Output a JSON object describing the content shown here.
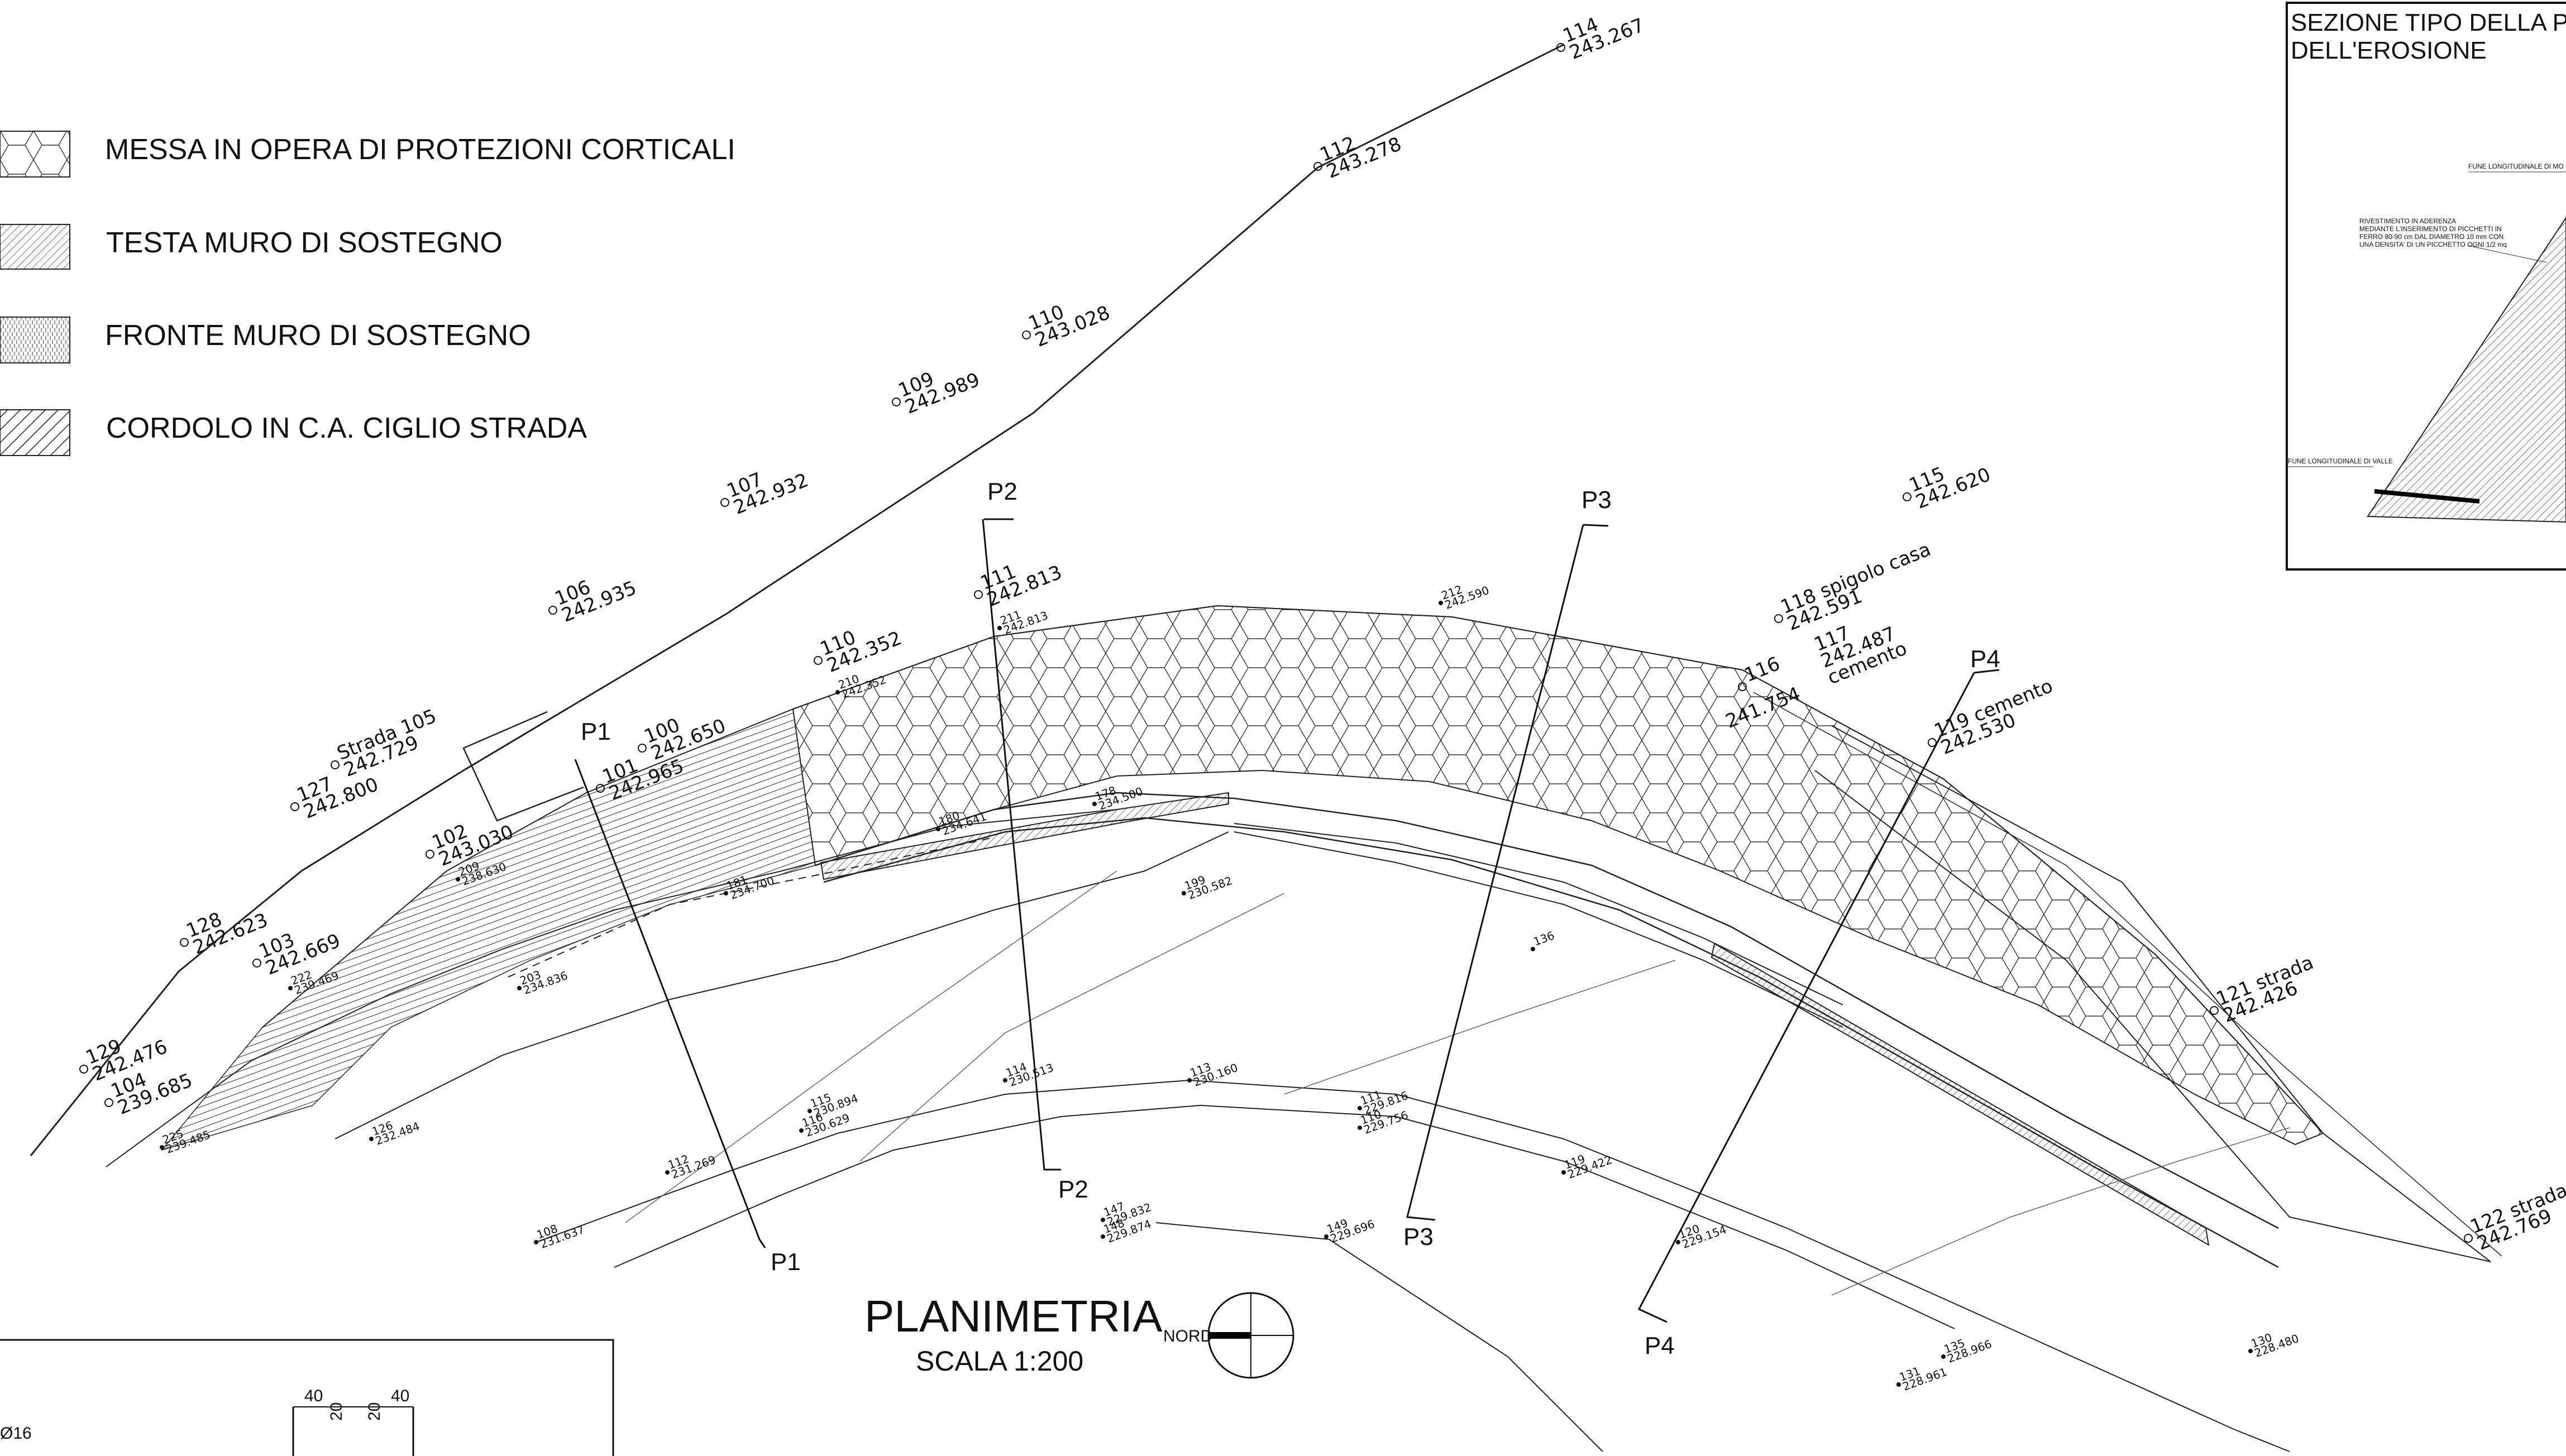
{
  "legend": {
    "items": [
      {
        "label": "MESSA IN OPERA DI PROTEZIONI CORTICALI",
        "pattern": "hex"
      },
      {
        "label": "TESTA MURO DI SOSTEGNO",
        "pattern": "hatch"
      },
      {
        "label": "FRONTE MURO DI SOSTEGNO",
        "pattern": "vlines"
      },
      {
        "label": "CORDOLO IN C.A. CIGLIO STRADA",
        "pattern": "thick-hatch"
      }
    ]
  },
  "detail": {
    "title_line1": "SEZIONE TIPO DELLA PA",
    "title_line2": "DELL'EROSIONE",
    "note_top": "FUNE LONGITUDINALE DI MO",
    "note_mid_1": "RIVESTIMENTO IN ADERENZA",
    "note_mid_2": "MEDIANTE L'INSERIMENTO DI PICCHETTI IN",
    "note_mid_3": "FERRO 80-90 cm DAL DIAMETRO 10 mm CON",
    "note_mid_4": "UNA DENSITA' DI UN PICCHETTO OGNI 1/2 mq",
    "note_bottom": "FUNE LONGITUDINALE DI VALLE"
  },
  "plan": {
    "title": "PLANIMETRIA",
    "scale": "SCALA 1:200",
    "north": "NORD"
  },
  "sections": {
    "p1": "P1",
    "p2": "P2",
    "p3": "P3",
    "p4": "P4"
  },
  "points": {
    "p114": {
      "id": "114",
      "elev": "243.267"
    },
    "p112": {
      "id": "112",
      "elev": "243.278"
    },
    "p110": {
      "id": "110",
      "elev": "243.028"
    },
    "p109": {
      "id": "109",
      "elev": "242.989"
    },
    "p107": {
      "id": "107",
      "elev": "242.932"
    },
    "p106": {
      "id": "106",
      "elev": "242.935"
    },
    "p105": {
      "id": "Strada 105",
      "elev": "242.729"
    },
    "p127": {
      "id": "127",
      "elev": "242.800"
    },
    "p128": {
      "id": "128",
      "elev": "242.623"
    },
    "p129": {
      "id": "129",
      "elev": "242.476"
    },
    "p104": {
      "id": "104",
      "elev": "239.685"
    },
    "p103": {
      "id": "103",
      "elev": "242.669"
    },
    "p102": {
      "id": "102",
      "elev": "243.030"
    },
    "p100": {
      "id": "100",
      "elev": "242.650"
    },
    "p101": {
      "id": "101",
      "elev": "242.965"
    },
    "p110b": {
      "id": "110",
      "elev": "242.352"
    },
    "p111": {
      "id": "111",
      "elev": "242.813"
    },
    "p115": {
      "id": "115",
      "elev": "242.620"
    },
    "p118": {
      "id": "118 spigolo casa",
      "elev": "242.591"
    },
    "p117": {
      "id": "117",
      "elev": "242.487"
    },
    "p117note": "cemento",
    "p116": {
      "id": "116",
      "elev": "241.754"
    },
    "p119": {
      "id": "119 cemento",
      "elev": "242.530"
    },
    "p121": {
      "id": "121 strada",
      "elev": "242.426"
    },
    "p122": {
      "id": "122 strada",
      "elev": "242.769"
    },
    "lower": {
      "a108": {
        "id": "108",
        "elev": "231.637"
      },
      "a112": {
        "id": "112",
        "elev": "231.269"
      },
      "a115": {
        "id": "115",
        "elev": "230.894"
      },
      "a116": {
        "id": "116",
        "elev": "230.629"
      },
      "a114": {
        "id": "114",
        "elev": "230.513"
      },
      "a113": {
        "id": "113",
        "elev": "230.160"
      },
      "a111": {
        "id": "111",
        "elev": "229.816"
      },
      "a110": {
        "id": "110",
        "elev": "229.756"
      },
      "a147": {
        "id": "147",
        "elev": "229.832"
      },
      "a148": {
        "id": "148",
        "elev": "229.874"
      },
      "a149": {
        "id": "149",
        "elev": "229.696"
      },
      "a119": {
        "id": "119",
        "elev": "229.422"
      },
      "a120": {
        "id": "120",
        "elev": "229.154"
      },
      "a130": {
        "id": "130",
        "elev": "228.480"
      },
      "a131": {
        "id": "131",
        "elev": "228.961"
      },
      "a135": {
        "id": "135",
        "elev": "228.966"
      },
      "a199": {
        "id": "199",
        "elev": "230.582"
      },
      "a178": {
        "id": "178",
        "elev": "234.500"
      },
      "a180": {
        "id": "180",
        "elev": "234.641"
      },
      "a181": {
        "id": "181",
        "elev": "234.700"
      },
      "a203": {
        "id": "203",
        "elev": "234.836"
      },
      "a209": {
        "id": "209",
        "elev": "238.630"
      },
      "a210": {
        "id": "210",
        "elev": "242.352"
      },
      "a211": {
        "id": "211",
        "elev": "242.813"
      },
      "a212": {
        "id": "212",
        "elev": "242.590"
      },
      "a222": {
        "id": "222",
        "elev": "239.469"
      },
      "a225": {
        "id": "225",
        "elev": "239.485"
      },
      "a126": {
        "id": "126",
        "elev": "232.484"
      },
      "a136": {
        "id": "136",
        "elev": ""
      }
    }
  },
  "rebar": {
    "dim_40a": "40",
    "dim_20a": "20",
    "dim_20b": "20",
    "dim_40b": "40",
    "bar": "Ø16"
  }
}
